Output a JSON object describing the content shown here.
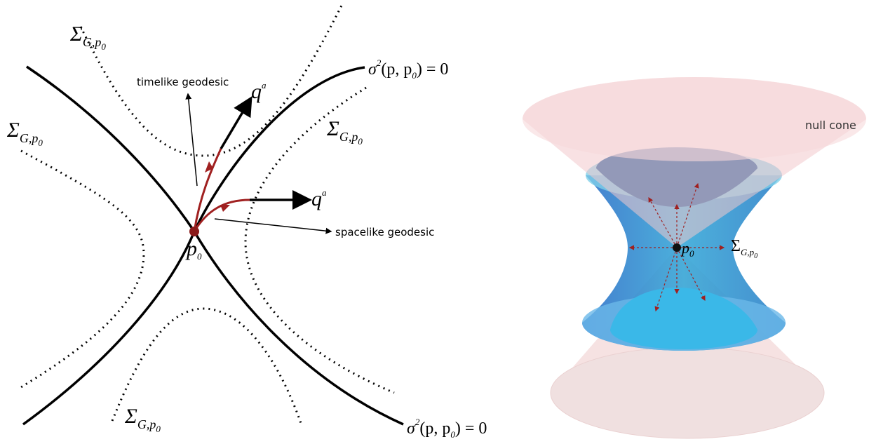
{
  "left": {
    "sigma_labels": [
      {
        "main": "Σ",
        "sub": "G,p",
        "subsub": "0"
      },
      {
        "main": "Σ",
        "sub": "G,p",
        "subsub": "0"
      },
      {
        "main": "Σ",
        "sub": "G,p",
        "subsub": "0"
      },
      {
        "main": "Σ",
        "sub": "G,p",
        "subsub": "0"
      }
    ],
    "timelike_label": "timelike geodesic",
    "spacelike_label": "spacelike geodesic",
    "q_labels": [
      {
        "main": "q",
        "sup": "a"
      },
      {
        "main": "q",
        "sup": "a"
      }
    ],
    "null_labels": [
      {
        "main": "σ",
        "sup": "2",
        "rest": "(p, p",
        "sub": "0",
        "end": ") = 0"
      },
      {
        "main": "σ",
        "sup": "2",
        "rest": "(p, p",
        "sub": "0",
        "end": ") = 0"
      }
    ],
    "point_label": {
      "main": "p",
      "sub": "0"
    }
  },
  "right": {
    "null_cone_label": "null cone",
    "point_label": {
      "main": "p",
      "sub": "0"
    },
    "sigma_label": {
      "main": "Σ",
      "sub": "G,p",
      "subsub": "0"
    }
  }
}
